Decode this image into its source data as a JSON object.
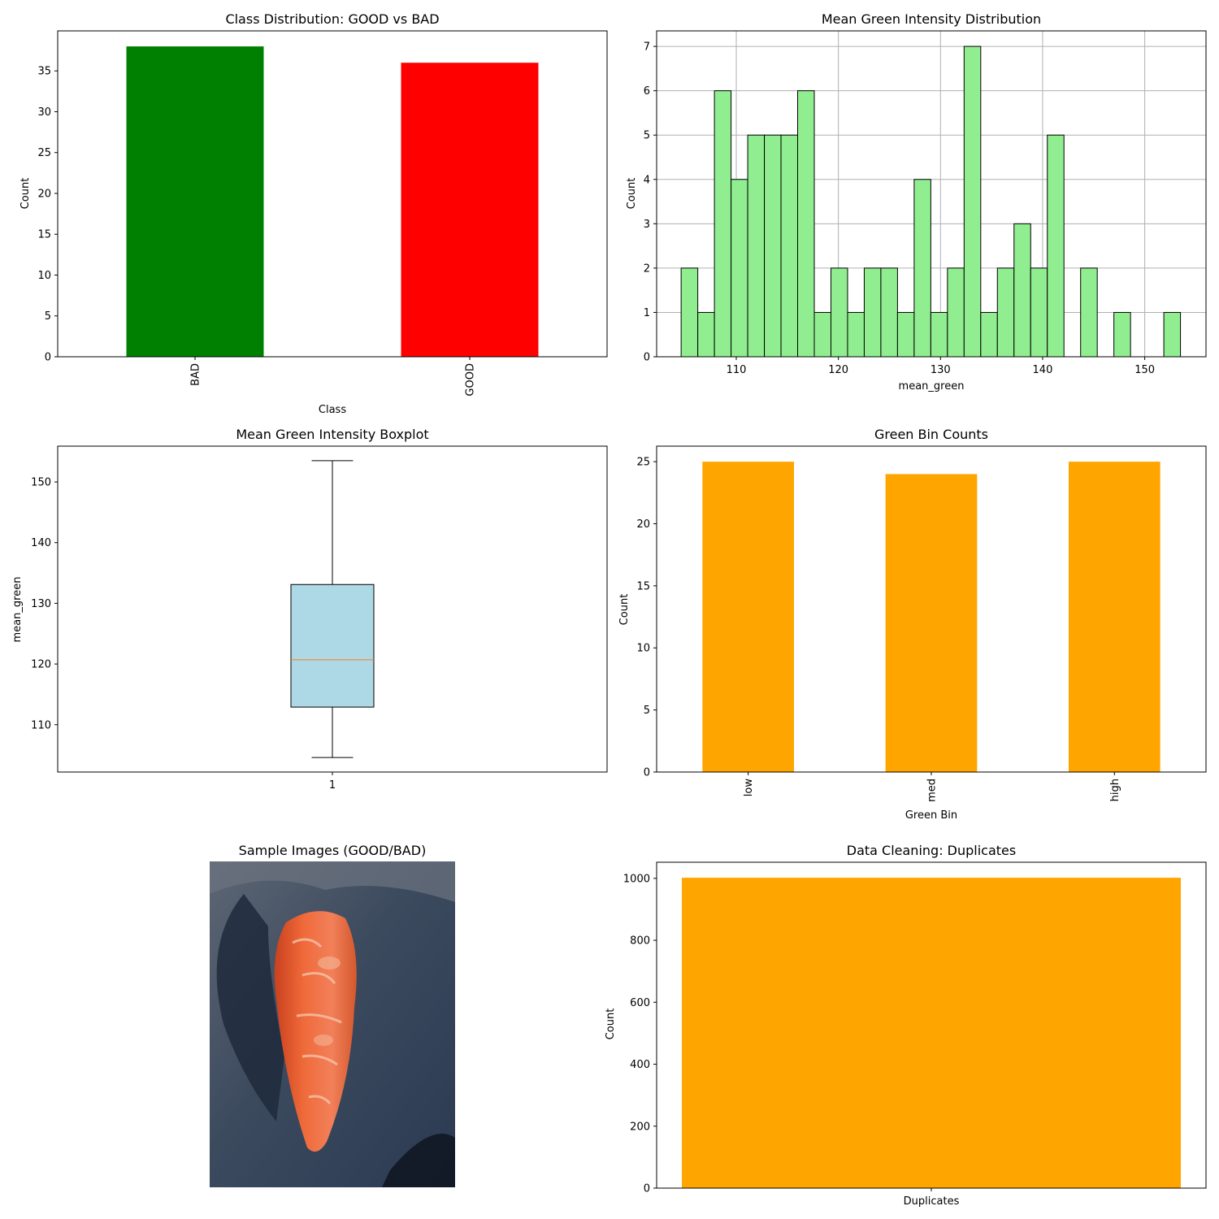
{
  "chart_data": [
    {
      "type": "bar",
      "title": "Class Distribution: GOOD vs BAD",
      "xlabel": "Class",
      "ylabel": "Count",
      "categories": [
        "BAD",
        "GOOD"
      ],
      "values": [
        38,
        36
      ],
      "colors": [
        "#008000",
        "#ff0000"
      ],
      "ylim": [
        0,
        39.9
      ],
      "yticks": [
        0,
        5,
        10,
        15,
        20,
        25,
        30,
        35
      ],
      "xtick_rotation": "vertical",
      "grid": false
    },
    {
      "type": "bar",
      "subtype": "histogram",
      "title": "Mean Green Intensity Distribution",
      "xlabel": "mean_green",
      "ylabel": "Count",
      "bin_start": 104.6,
      "bin_width": 1.63,
      "counts": [
        2,
        1,
        6,
        4,
        5,
        5,
        5,
        6,
        1,
        2,
        1,
        2,
        2,
        1,
        4,
        1,
        2,
        7,
        1,
        2,
        3,
        2,
        5,
        0,
        2,
        0,
        1,
        0,
        0,
        1
      ],
      "xlim": [
        102.2,
        156.0
      ],
      "ylim": [
        0,
        7.35
      ],
      "xticks": [
        110,
        120,
        130,
        140,
        150
      ],
      "yticks": [
        0,
        1,
        2,
        3,
        4,
        5,
        6,
        7
      ],
      "color": "#90ee90",
      "edgecolor": "#000000",
      "grid": true
    },
    {
      "type": "boxplot",
      "title": "Mean Green Intensity Boxplot",
      "xlabel": "",
      "ylabel": "mean_green",
      "categories": [
        "1"
      ],
      "whisker_low": 104.6,
      "q1": 112.9,
      "median": 120.7,
      "q3": 133.1,
      "whisker_high": 153.5,
      "ylim": [
        102.2,
        155.9
      ],
      "yticks": [
        110,
        120,
        130,
        140,
        150
      ],
      "box_color": "#add8e6",
      "median_color": "#ff7f0e",
      "grid": false
    },
    {
      "type": "bar",
      "title": "Green Bin Counts",
      "xlabel": "Green Bin",
      "ylabel": "Count",
      "categories": [
        "low",
        "med",
        "high"
      ],
      "values": [
        25,
        24,
        25
      ],
      "color": "#ffa500",
      "ylim": [
        0,
        26.25
      ],
      "yticks": [
        0,
        5,
        10,
        15,
        20,
        25
      ],
      "xtick_rotation": "vertical",
      "grid": false
    },
    {
      "type": "bar",
      "title": "Data Cleaning: Duplicates",
      "xlabel": "",
      "ylabel": "Count",
      "categories": [
        "Duplicates"
      ],
      "values": [
        1002
      ],
      "color": "#ffa500",
      "ylim": [
        0,
        1052
      ],
      "yticks": [
        0,
        200,
        400,
        600,
        800,
        1000
      ],
      "grid": false
    }
  ],
  "image_panel": {
    "title": "Sample Images (GOOD/BAD)",
    "subject": "carrot-photo"
  }
}
